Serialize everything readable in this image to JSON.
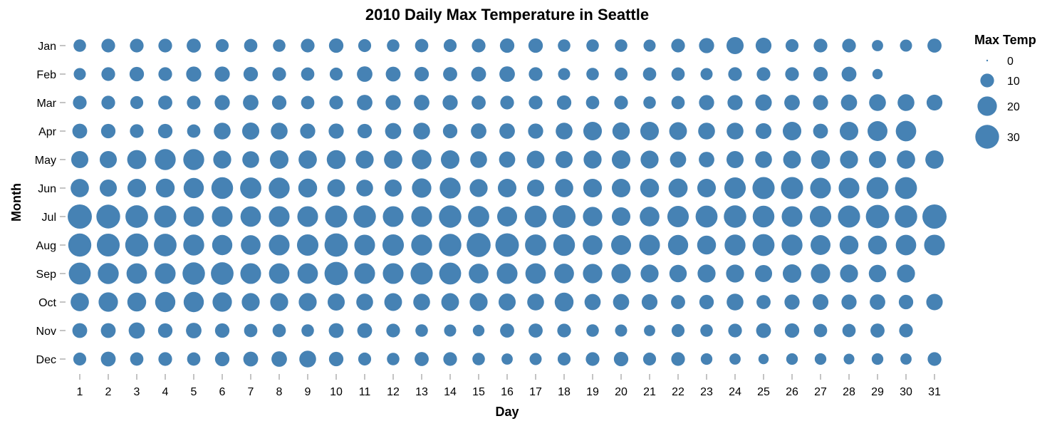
{
  "chart_data": {
    "type": "scatter",
    "title": "2010 Daily Max Temperature in Seattle",
    "xlabel": "Day",
    "ylabel": "Month",
    "x": [
      1,
      2,
      3,
      4,
      5,
      6,
      7,
      8,
      9,
      10,
      11,
      12,
      13,
      14,
      15,
      16,
      17,
      18,
      19,
      20,
      21,
      22,
      23,
      24,
      25,
      26,
      27,
      28,
      29,
      30,
      31
    ],
    "categories": [
      "Jan",
      "Feb",
      "Mar",
      "Apr",
      "May",
      "Jun",
      "Jul",
      "Aug",
      "Sep",
      "Oct",
      "Nov",
      "Dec"
    ],
    "size_legend": {
      "title": "Max Temp",
      "values": [
        0,
        10,
        20,
        30
      ]
    },
    "mark_color": "#4682b4",
    "size_domain_max": 33,
    "values": [
      [
        8.3,
        10.0,
        10.0,
        10.0,
        10.6,
        8.9,
        9.4,
        8.3,
        10.0,
        11.1,
        8.9,
        8.3,
        9.4,
        8.9,
        10.0,
        11.1,
        11.1,
        8.3,
        8.3,
        8.3,
        7.8,
        10.0,
        12.2,
        15.6,
        13.3,
        8.9,
        10.0,
        10.0,
        6.7,
        7.8,
        10.6
      ],
      [
        7.8,
        10.0,
        11.1,
        10.0,
        12.2,
        12.2,
        11.1,
        10.0,
        9.4,
        8.9,
        12.8,
        11.7,
        11.1,
        10.6,
        11.7,
        12.8,
        10.0,
        7.8,
        8.3,
        8.9,
        9.4,
        9.4,
        7.8,
        10.0,
        10.0,
        10.0,
        11.1,
        11.7,
        5.6
      ],
      [
        10.0,
        10.0,
        8.9,
        10.6,
        10.0,
        12.2,
        12.8,
        11.1,
        9.4,
        10.0,
        12.8,
        12.2,
        12.8,
        12.2,
        10.6,
        10.0,
        10.0,
        11.1,
        9.4,
        10.0,
        8.3,
        9.4,
        12.2,
        12.2,
        14.4,
        12.8,
        12.2,
        13.9,
        15.0,
        15.0,
        13.3
      ],
      [
        11.7,
        11.1,
        10.0,
        11.1,
        9.4,
        15.0,
        15.6,
        15.0,
        12.2,
        12.2,
        11.1,
        13.9,
        15.0,
        11.1,
        12.8,
        12.8,
        12.2,
        15.0,
        18.3,
        16.1,
        18.3,
        16.7,
        15.0,
        15.0,
        13.3,
        18.3,
        11.7,
        18.3,
        21.1,
        22.2
      ],
      [
        15.6,
        15.6,
        19.4,
        23.3,
        23.3,
        17.2,
        15.0,
        18.3,
        17.8,
        18.9,
        17.2,
        17.8,
        20.6,
        18.3,
        15.0,
        13.9,
        16.7,
        15.6,
        17.2,
        18.3,
        17.2,
        13.9,
        12.8,
        15.6,
        15.0,
        16.7,
        18.9,
        17.2,
        15.6,
        17.8,
        17.8
      ],
      [
        17.8,
        15.6,
        18.3,
        18.9,
        21.7,
        25.0,
        23.9,
        23.3,
        18.9,
        16.7,
        15.0,
        15.6,
        20.0,
        23.3,
        17.2,
        18.3,
        15.6,
        17.8,
        18.3,
        18.3,
        18.9,
        19.4,
        18.3,
        24.4,
        26.1,
        26.1,
        22.8,
        22.8,
        25.6,
        25.6
      ],
      [
        31.1,
        30.0,
        27.2,
        26.1,
        22.2,
        22.8,
        22.2,
        22.8,
        22.8,
        26.1,
        26.7,
        22.8,
        22.8,
        26.7,
        23.9,
        21.1,
        25.6,
        27.8,
        20.0,
        18.3,
        20.6,
        24.4,
        25.6,
        26.7,
        25.0,
        22.8,
        24.4,
        26.1,
        28.9,
        26.7,
        31.1
      ],
      [
        28.3,
        27.8,
        28.3,
        27.2,
        23.3,
        21.7,
        20.6,
        22.8,
        24.4,
        28.9,
        22.8,
        24.4,
        23.3,
        26.7,
        30.6,
        29.4,
        23.9,
        25.0,
        20.6,
        21.1,
        22.8,
        21.7,
        18.9,
        23.3,
        25.6,
        23.3,
        21.1,
        18.9,
        18.9,
        22.2,
        22.8
      ],
      [
        25.6,
        23.3,
        22.2,
        22.8,
        26.7,
        27.2,
        22.8,
        22.2,
        22.2,
        28.9,
        22.8,
        22.8,
        26.1,
        25.6,
        20.6,
        22.8,
        22.2,
        20.6,
        20.0,
        20.0,
        17.2,
        16.1,
        17.2,
        17.2,
        15.6,
        18.3,
        20.0,
        17.2,
        16.1,
        17.2
      ],
      [
        17.8,
        20.0,
        18.9,
        21.7,
        21.7,
        20.0,
        17.2,
        17.2,
        17.2,
        15.6,
        15.0,
        16.7,
        15.0,
        16.7,
        17.2,
        15.6,
        15.0,
        18.9,
        13.9,
        13.9,
        13.3,
        10.6,
        11.1,
        15.0,
        10.6,
        12.2,
        13.3,
        12.2,
        12.8,
        11.1,
        14.4
      ],
      [
        11.7,
        11.7,
        13.9,
        11.1,
        12.8,
        11.1,
        9.4,
        9.4,
        8.3,
        11.7,
        11.7,
        10.0,
        8.3,
        7.8,
        7.2,
        10.6,
        10.6,
        10.0,
        8.3,
        7.8,
        6.7,
        8.9,
        8.3,
        10.0,
        11.7,
        11.1,
        9.4,
        9.4,
        10.6,
        10.0
      ],
      [
        8.9,
        11.7,
        9.4,
        10.0,
        9.4,
        11.1,
        11.7,
        12.8,
        15.0,
        11.1,
        8.9,
        8.3,
        10.6,
        10.0,
        8.3,
        6.7,
        7.8,
        8.9,
        10.0,
        11.1,
        8.9,
        10.0,
        7.2,
        6.7,
        5.6,
        7.2,
        7.2,
        6.1,
        7.2,
        6.7,
        10.0
      ]
    ]
  }
}
